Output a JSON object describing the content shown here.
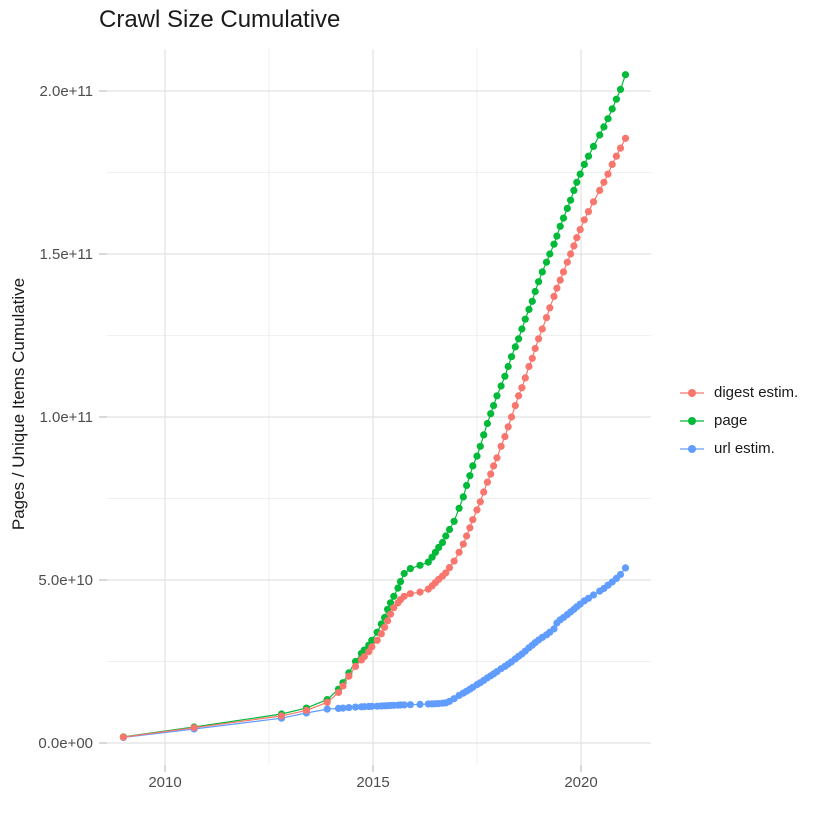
{
  "title": "Crawl Size Cumulative",
  "axes": {
    "y_label": "Pages / Unique Items Cumulative",
    "x_tick_labels": [
      "2010",
      "2015",
      "2020"
    ],
    "y_tick_labels": [
      "0.0e+00",
      "5.0e+10",
      "1.0e+11",
      "1.5e+11",
      "2.0e+11"
    ]
  },
  "legend": {
    "position": "right"
  },
  "chart_data": {
    "type": "line",
    "marker": "point",
    "title": "Crawl Size Cumulative",
    "xlabel": "",
    "ylabel": "Pages / Unique Items Cumulative",
    "values_unit": "billions (value × 1e9)",
    "x_domain": [
      2008.4,
      2021.7
    ],
    "y_domain_billions": [
      -7,
      214
    ],
    "grid": true,
    "x_major_ticks": [
      {
        "value": 2010,
        "label": "2010"
      },
      {
        "value": 2015,
        "label": "2015"
      },
      {
        "value": 2020,
        "label": "2020"
      }
    ],
    "x_minor_ticks": [
      2012.5,
      2017.5
    ],
    "y_major_ticks": [
      {
        "value": 0,
        "label": "0.0e+00"
      },
      {
        "value": 50,
        "label": "5.0e+10"
      },
      {
        "value": 100,
        "label": "1.0e+11"
      },
      {
        "value": 150,
        "label": "1.5e+11"
      },
      {
        "value": 200,
        "label": "2.0e+11"
      }
    ],
    "y_minor_ticks": [
      25,
      75,
      125,
      175
    ],
    "x": [
      2009.0,
      2010.7,
      2012.8,
      2013.4,
      2013.9,
      2014.17,
      2014.28,
      2014.42,
      2014.58,
      2014.72,
      2014.79,
      2014.9,
      2014.97,
      2015.1,
      2015.2,
      2015.28,
      2015.35,
      2015.42,
      2015.5,
      2015.6,
      2015.66,
      2015.75,
      2015.9,
      2016.13,
      2016.33,
      2016.42,
      2016.5,
      2016.58,
      2016.67,
      2016.75,
      2016.84,
      2016.95,
      2017.07,
      2017.17,
      2017.25,
      2017.33,
      2017.4,
      2017.5,
      2017.58,
      2017.66,
      2017.75,
      2017.83,
      2017.9,
      2017.98,
      2018.08,
      2018.17,
      2018.25,
      2018.33,
      2018.42,
      2018.5,
      2018.58,
      2018.66,
      2018.75,
      2018.83,
      2018.9,
      2018.98,
      2019.07,
      2019.17,
      2019.25,
      2019.35,
      2019.42,
      2019.5,
      2019.58,
      2019.67,
      2019.75,
      2019.83,
      2019.9,
      2019.98,
      2020.08,
      2020.18,
      2020.3,
      2020.45,
      2020.55,
      2020.65,
      2020.75,
      2020.85,
      2020.95,
      2021.07
    ],
    "series": [
      {
        "name": "digest estim.",
        "color": "#F8766D",
        "values": [
          1.8,
          4.7,
          8.3,
          10.0,
          12.5,
          15.5,
          17.5,
          20.5,
          23.5,
          25.5,
          26.5,
          28.0,
          29.5,
          31.5,
          33.5,
          35.5,
          37.5,
          39.5,
          41.5,
          43.0,
          44.0,
          45.0,
          45.8,
          46.3,
          47.2,
          48.2,
          49.2,
          50.2,
          51.2,
          52.2,
          53.8,
          55.8,
          58.5,
          61.0,
          63.5,
          66.0,
          68.5,
          71.5,
          74.0,
          77.0,
          80.0,
          82.5,
          85.0,
          87.5,
          91.0,
          94.0,
          97.0,
          100.0,
          103.5,
          106.5,
          109.0,
          112.0,
          115.5,
          118.0,
          121.0,
          124.0,
          127.0,
          130.5,
          133.5,
          137.0,
          139.5,
          142.0,
          144.5,
          147.5,
          150.0,
          152.5,
          155.0,
          157.5,
          160.5,
          163.0,
          166.0,
          169.5,
          172.0,
          174.5,
          177.5,
          180.0,
          182.5,
          185.5
        ]
      },
      {
        "name": "page",
        "color": "#00BA38",
        "values": [
          1.9,
          4.9,
          8.9,
          10.7,
          13.3,
          16.5,
          18.5,
          21.5,
          25.0,
          27.5,
          28.5,
          30.0,
          31.5,
          34.0,
          36.5,
          38.5,
          41.0,
          43.0,
          45.0,
          47.5,
          49.5,
          52.0,
          53.5,
          54.5,
          55.5,
          57.0,
          58.5,
          60.0,
          61.5,
          63.5,
          65.5,
          68.0,
          72.0,
          75.5,
          79.0,
          82.0,
          85.0,
          88.0,
          91.0,
          94.5,
          98.0,
          101.0,
          103.5,
          106.5,
          109.5,
          112.5,
          115.5,
          118.5,
          121.5,
          124.0,
          127.0,
          130.0,
          133.0,
          135.5,
          138.5,
          141.5,
          144.5,
          147.5,
          150.0,
          153.0,
          155.5,
          158.5,
          161.0,
          164.0,
          166.5,
          169.5,
          172.0,
          174.5,
          177.5,
          180.0,
          183.0,
          186.5,
          189.0,
          191.5,
          194.5,
          197.5,
          200.5,
          205.0
        ]
      },
      {
        "name": "url estim.",
        "color": "#619CFF",
        "values": [
          1.7,
          4.3,
          7.6,
          9.2,
          10.4,
          10.6,
          10.7,
          10.85,
          11.0,
          11.1,
          11.15,
          11.2,
          11.25,
          11.3,
          11.35,
          11.4,
          11.45,
          11.5,
          11.55,
          11.6,
          11.65,
          11.7,
          11.75,
          11.85,
          11.95,
          12.0,
          12.05,
          12.1,
          12.2,
          12.3,
          12.8,
          13.6,
          14.6,
          15.3,
          15.9,
          16.5,
          17.1,
          17.9,
          18.5,
          19.2,
          20.0,
          20.6,
          21.2,
          21.9,
          22.8,
          23.5,
          24.2,
          24.9,
          25.8,
          26.6,
          27.3,
          28.2,
          29.2,
          30.0,
          30.8,
          31.6,
          32.4,
          33.2,
          34.0,
          35.0,
          36.8,
          37.8,
          38.5,
          39.4,
          40.2,
          41.0,
          41.8,
          42.6,
          43.6,
          44.4,
          45.4,
          46.6,
          47.4,
          48.4,
          49.4,
          50.5,
          51.7,
          53.7
        ]
      }
    ]
  }
}
